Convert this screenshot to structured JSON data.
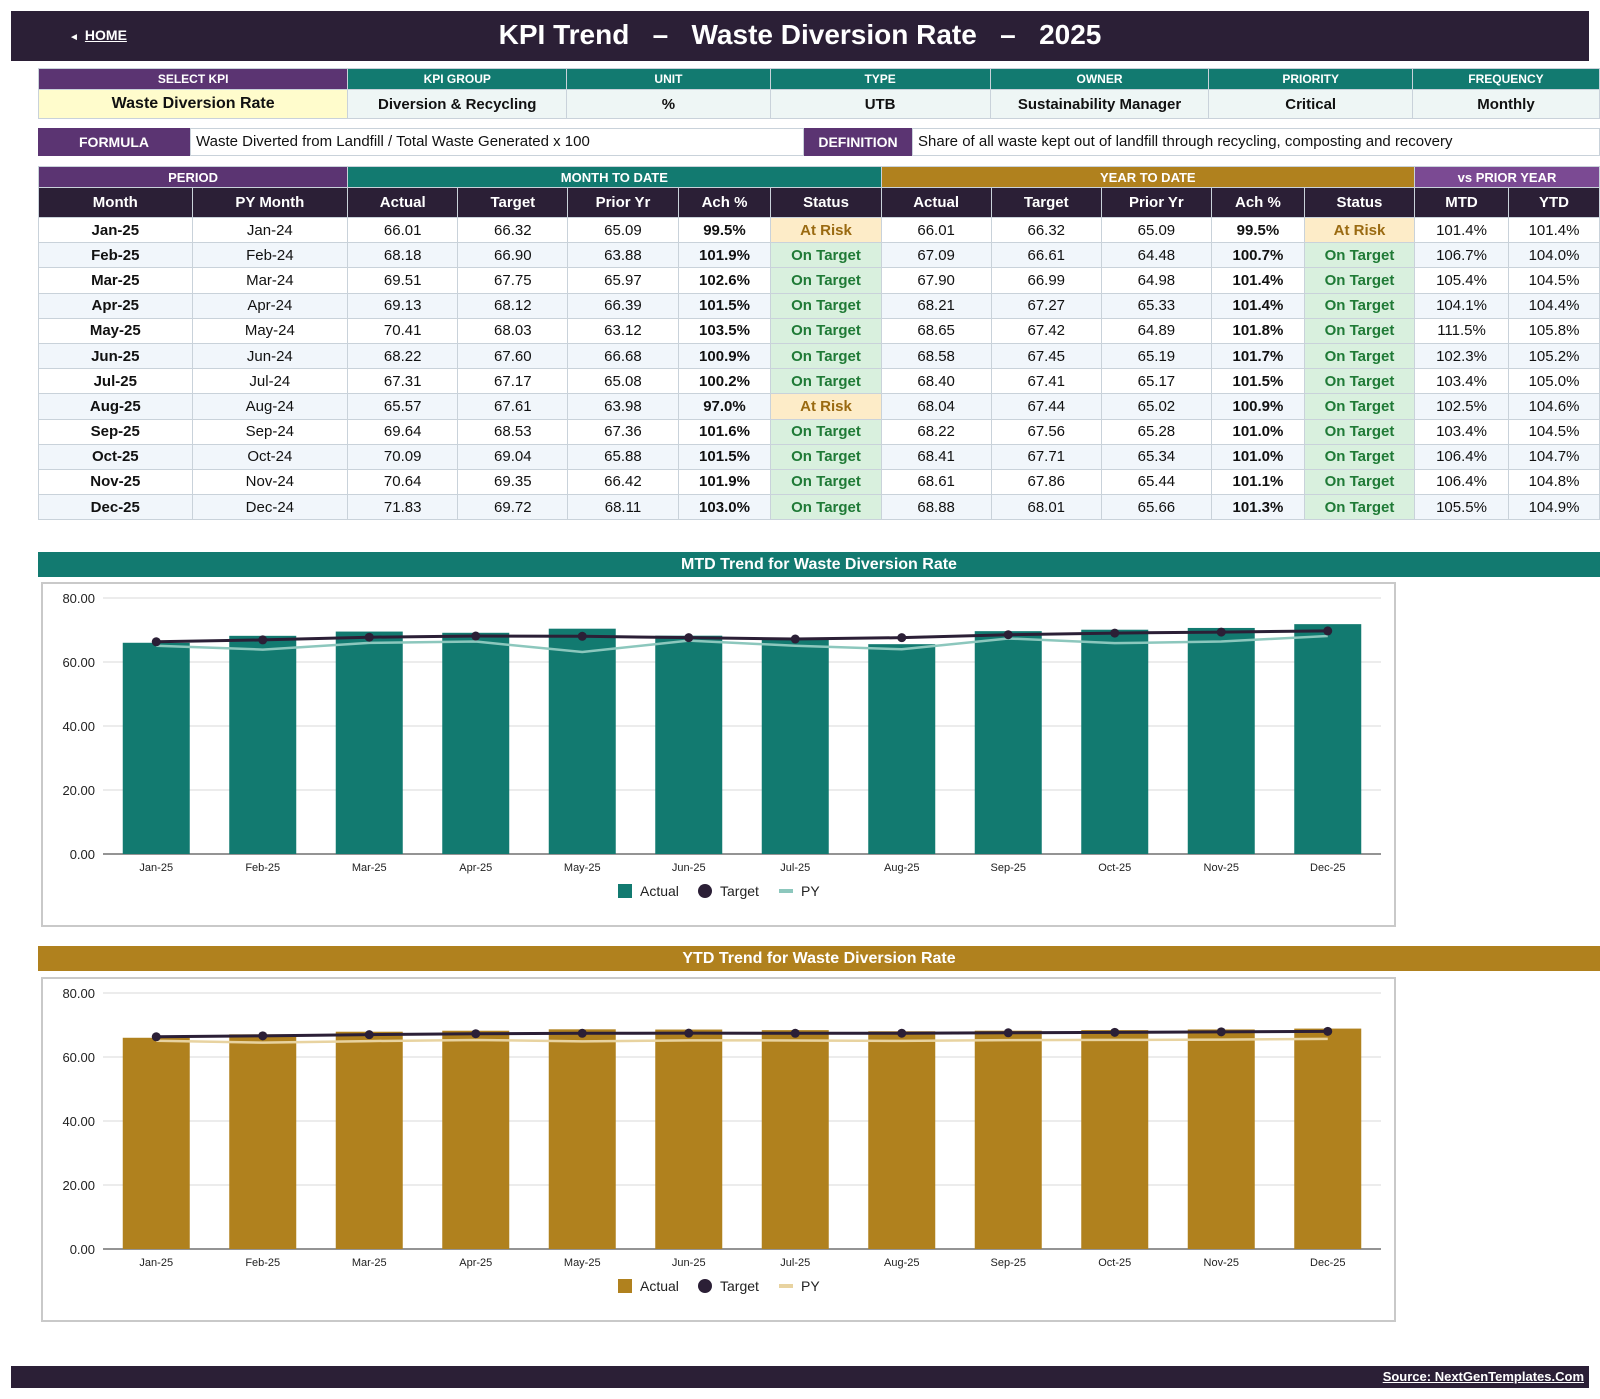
{
  "header": {
    "home_label": "HOME",
    "title": "KPI Trend   –   Waste Diversion Rate   –   2025"
  },
  "info": {
    "headers": [
      "SELECT KPI",
      "KPI GROUP",
      "UNIT",
      "TYPE",
      "OWNER",
      "PRIORITY",
      "FREQUENCY"
    ],
    "values": [
      "Waste Diversion Rate",
      "Diversion & Recycling",
      "%",
      "UTB",
      "Sustainability Manager",
      "Critical",
      "Monthly"
    ]
  },
  "formula": {
    "label": "FORMULA",
    "value": "Waste Diverted from Landfill / Total Waste Generated x 100"
  },
  "definition": {
    "label": "DEFINITION",
    "value": "Share of all waste kept out of landfill through recycling, composting and recovery"
  },
  "table": {
    "groups": {
      "period": "PERIOD",
      "mtd": "MONTH TO DATE",
      "ytd": "YEAR TO DATE",
      "vs": "vs PRIOR YEAR"
    },
    "columns": [
      "Month",
      "PY Month",
      "Actual",
      "Target",
      "Prior Yr",
      "Ach %",
      "Status",
      "Actual",
      "Target",
      "Prior Yr",
      "Ach %",
      "Status",
      "MTD",
      "YTD"
    ],
    "rows": [
      [
        "Jan-25",
        "Jan-24",
        "66.01",
        "66.32",
        "65.09",
        "99.5%",
        "At Risk",
        "66.01",
        "66.32",
        "65.09",
        "99.5%",
        "At Risk",
        "101.4%",
        "101.4%"
      ],
      [
        "Feb-25",
        "Feb-24",
        "68.18",
        "66.90",
        "63.88",
        "101.9%",
        "On Target",
        "67.09",
        "66.61",
        "64.48",
        "100.7%",
        "On Target",
        "106.7%",
        "104.0%"
      ],
      [
        "Mar-25",
        "Mar-24",
        "69.51",
        "67.75",
        "65.97",
        "102.6%",
        "On Target",
        "67.90",
        "66.99",
        "64.98",
        "101.4%",
        "On Target",
        "105.4%",
        "104.5%"
      ],
      [
        "Apr-25",
        "Apr-24",
        "69.13",
        "68.12",
        "66.39",
        "101.5%",
        "On Target",
        "68.21",
        "67.27",
        "65.33",
        "101.4%",
        "On Target",
        "104.1%",
        "104.4%"
      ],
      [
        "May-25",
        "May-24",
        "70.41",
        "68.03",
        "63.12",
        "103.5%",
        "On Target",
        "68.65",
        "67.42",
        "64.89",
        "101.8%",
        "On Target",
        "111.5%",
        "105.8%"
      ],
      [
        "Jun-25",
        "Jun-24",
        "68.22",
        "67.60",
        "66.68",
        "100.9%",
        "On Target",
        "68.58",
        "67.45",
        "65.19",
        "101.7%",
        "On Target",
        "102.3%",
        "105.2%"
      ],
      [
        "Jul-25",
        "Jul-24",
        "67.31",
        "67.17",
        "65.08",
        "100.2%",
        "On Target",
        "68.40",
        "67.41",
        "65.17",
        "101.5%",
        "On Target",
        "103.4%",
        "105.0%"
      ],
      [
        "Aug-25",
        "Aug-24",
        "65.57",
        "67.61",
        "63.98",
        "97.0%",
        "At Risk",
        "68.04",
        "67.44",
        "65.02",
        "100.9%",
        "On Target",
        "102.5%",
        "104.6%"
      ],
      [
        "Sep-25",
        "Sep-24",
        "69.64",
        "68.53",
        "67.36",
        "101.6%",
        "On Target",
        "68.22",
        "67.56",
        "65.28",
        "101.0%",
        "On Target",
        "103.4%",
        "104.5%"
      ],
      [
        "Oct-25",
        "Oct-24",
        "70.09",
        "69.04",
        "65.88",
        "101.5%",
        "On Target",
        "68.41",
        "67.71",
        "65.34",
        "101.0%",
        "On Target",
        "106.4%",
        "104.7%"
      ],
      [
        "Nov-25",
        "Nov-24",
        "70.64",
        "69.35",
        "66.42",
        "101.9%",
        "On Target",
        "68.61",
        "67.86",
        "65.44",
        "101.1%",
        "On Target",
        "106.4%",
        "104.8%"
      ],
      [
        "Dec-25",
        "Dec-24",
        "71.83",
        "69.72",
        "68.11",
        "103.0%",
        "On Target",
        "68.88",
        "68.01",
        "65.66",
        "101.3%",
        "On Target",
        "105.5%",
        "104.9%"
      ]
    ]
  },
  "colors": {
    "dark": "#2b1f36",
    "purple": "#5b3472",
    "teal": "#127a70",
    "gold": "#b0811e",
    "teal_py": "#8cc7bd",
    "gold_py": "#e8d3a0",
    "on_target": "#1f7a36",
    "at_risk": "#9a6a11"
  },
  "chart_data": [
    {
      "type": "bar",
      "title": "MTD Trend for Waste Diversion Rate",
      "categories": [
        "Jan-25",
        "Feb-25",
        "Mar-25",
        "Apr-25",
        "May-25",
        "Jun-25",
        "Jul-25",
        "Aug-25",
        "Sep-25",
        "Oct-25",
        "Nov-25",
        "Dec-25"
      ],
      "series": [
        {
          "name": "Actual",
          "kind": "bar",
          "values": [
            66.01,
            68.18,
            69.51,
            69.13,
            70.41,
            68.22,
            67.31,
            65.57,
            69.64,
            70.09,
            70.64,
            71.83
          ]
        },
        {
          "name": "Target",
          "kind": "line-markers",
          "values": [
            66.32,
            66.9,
            67.75,
            68.12,
            68.03,
            67.6,
            67.17,
            67.61,
            68.53,
            69.04,
            69.35,
            69.72
          ]
        },
        {
          "name": "PY",
          "kind": "line",
          "values": [
            65.09,
            63.88,
            65.97,
            66.39,
            63.12,
            66.68,
            65.08,
            63.98,
            67.36,
            65.88,
            66.42,
            68.11
          ]
        }
      ],
      "yticks": [
        "80.00",
        "60.00",
        "40.00",
        "20.00",
        "0.00"
      ],
      "ylim": [
        0,
        80
      ],
      "grid": true,
      "legend": "bottom"
    },
    {
      "type": "bar",
      "title": "YTD Trend for Waste Diversion Rate",
      "categories": [
        "Jan-25",
        "Feb-25",
        "Mar-25",
        "Apr-25",
        "May-25",
        "Jun-25",
        "Jul-25",
        "Aug-25",
        "Sep-25",
        "Oct-25",
        "Nov-25",
        "Dec-25"
      ],
      "series": [
        {
          "name": "Actual",
          "kind": "bar",
          "values": [
            66.01,
            67.09,
            67.9,
            68.21,
            68.65,
            68.58,
            68.4,
            68.04,
            68.22,
            68.41,
            68.61,
            68.88
          ]
        },
        {
          "name": "Target",
          "kind": "line-markers",
          "values": [
            66.32,
            66.61,
            66.99,
            67.27,
            67.42,
            67.45,
            67.41,
            67.44,
            67.56,
            67.71,
            67.86,
            68.01
          ]
        },
        {
          "name": "PY",
          "kind": "line",
          "values": [
            65.09,
            64.48,
            64.98,
            65.33,
            64.89,
            65.19,
            65.17,
            65.02,
            65.28,
            65.34,
            65.44,
            65.66
          ]
        }
      ],
      "yticks": [
        "80.00",
        "60.00",
        "40.00",
        "20.00",
        "0.00"
      ],
      "ylim": [
        0,
        80
      ],
      "grid": true,
      "legend": "bottom"
    }
  ],
  "footer": {
    "source": "Source: NextGenTemplates.Com"
  }
}
